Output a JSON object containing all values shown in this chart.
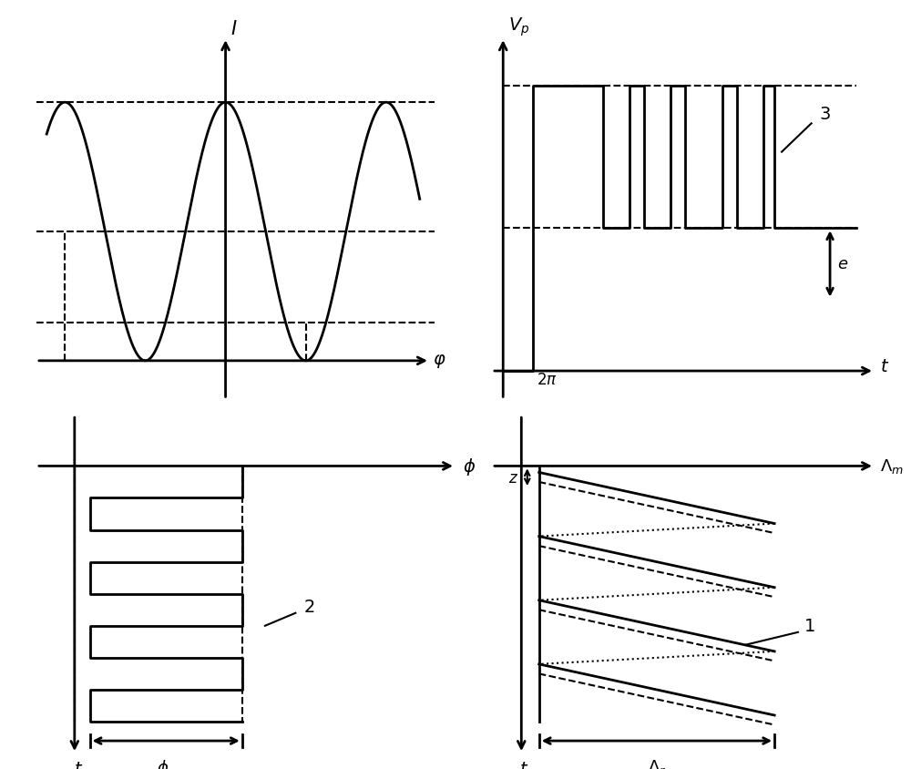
{
  "bg_color": "#ffffff",
  "fig_width": 10.0,
  "fig_height": 8.45,
  "cos_wave_color": "#000000",
  "dashed_color": "#000000",
  "pulse_color": "#000000",
  "staircase_color": "#000000",
  "sawtooth_color": "#000000",
  "annotation_color": "#000000",
  "linewidth": 2.0,
  "thin_lw": 1.5
}
